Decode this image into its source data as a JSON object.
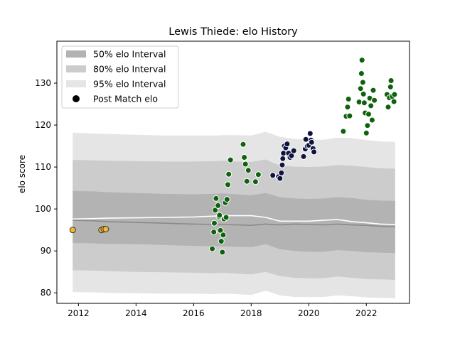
{
  "chart_data": {
    "type": "scatter",
    "title": "Lewis Thiede: elo History",
    "xlabel": "",
    "ylabel": "elo score",
    "xlim": [
      2011.25,
      2023.5
    ],
    "ylim": [
      77.5,
      140
    ],
    "x_ticks": [
      2012,
      2014,
      2016,
      2018,
      2020,
      2022
    ],
    "y_ticks": [
      80,
      90,
      100,
      110,
      120,
      130
    ],
    "grid": false,
    "legend_position": "top-left",
    "legend": [
      {
        "label": "50% elo Interval",
        "kind": "band",
        "color": "#b3b3b3"
      },
      {
        "label": "80% elo Interval",
        "kind": "band",
        "color": "#cccccc"
      },
      {
        "label": "95% elo Interval",
        "kind": "band",
        "color": "#e5e5e5"
      },
      {
        "label": "Post Match elo",
        "kind": "marker",
        "color": "#000000"
      }
    ],
    "bands": {
      "x": [
        2011.8,
        2012.5,
        2013.0,
        2014.0,
        2015.0,
        2016.0,
        2016.7,
        2017.0,
        2017.5,
        2018.0,
        2018.5,
        2019.0,
        2019.5,
        2020.0,
        2020.5,
        2021.0,
        2021.5,
        2022.0,
        2022.5,
        2023.0
      ],
      "p95_hi": [
        118.2,
        118.0,
        117.9,
        117.7,
        117.5,
        117.5,
        117.5,
        117.6,
        117.6,
        117.5,
        118.4,
        117.2,
        116.7,
        116.6,
        116.5,
        117.0,
        116.9,
        116.4,
        116.1,
        116.0
      ],
      "p80_hi": [
        111.7,
        111.6,
        111.5,
        111.4,
        111.3,
        111.3,
        111.4,
        111.5,
        111.3,
        111.2,
        111.8,
        110.3,
        110.1,
        110.0,
        110.1,
        110.5,
        110.3,
        110.0,
        109.7,
        109.6
      ],
      "p50_hi": [
        104.3,
        104.2,
        104.0,
        103.8,
        103.6,
        103.5,
        103.6,
        103.7,
        103.5,
        103.3,
        103.8,
        102.8,
        102.5,
        102.4,
        102.5,
        102.8,
        102.6,
        102.2,
        102.0,
        101.9
      ],
      "p50_lo": [
        91.9,
        91.8,
        91.7,
        91.6,
        91.4,
        91.2,
        91.1,
        91.1,
        91.0,
        90.9,
        91.6,
        90.4,
        90.0,
        89.8,
        89.8,
        90.2,
        90.0,
        89.7,
        89.6,
        89.5
      ],
      "p80_lo": [
        85.4,
        85.3,
        85.2,
        85.0,
        84.9,
        84.8,
        84.7,
        84.8,
        84.6,
        84.4,
        85.0,
        84.0,
        83.6,
        83.5,
        83.5,
        83.9,
        83.6,
        83.3,
        83.2,
        83.1
      ],
      "p95_lo": [
        80.2,
        80.1,
        80.0,
        79.9,
        79.8,
        79.8,
        79.7,
        79.8,
        79.7,
        79.5,
        80.5,
        79.4,
        79.0,
        79.0,
        79.0,
        79.4,
        79.2,
        78.9,
        78.8,
        78.7
      ],
      "mean": [
        97.3,
        97.2,
        97.0,
        96.8,
        96.6,
        96.4,
        96.3,
        96.3,
        96.2,
        96.1,
        96.4,
        96.2,
        96.4,
        96.3,
        96.2,
        96.4,
        96.2,
        96.1,
        95.9,
        95.8
      ],
      "median": [
        97.6,
        97.7,
        97.8,
        97.9,
        98.0,
        98.1,
        98.3,
        98.4,
        98.4,
        98.4,
        98.0,
        97.1,
        97.1,
        97.1,
        97.3,
        97.5,
        97.0,
        96.7,
        96.4,
        96.3
      ]
    },
    "series": [
      {
        "marker_color": "#f5b82e",
        "edge_color": "#333333",
        "points": [
          [
            2011.8,
            95.0
          ],
          [
            2012.8,
            95.0
          ],
          [
            2012.88,
            95.2
          ],
          [
            2012.95,
            95.2
          ]
        ]
      },
      {
        "marker_color": "#0e620e",
        "edge_color": "#ffffff",
        "points": [
          [
            2016.65,
            90.5
          ],
          [
            2016.7,
            94.5
          ],
          [
            2016.72,
            96.6
          ],
          [
            2016.75,
            99.7
          ],
          [
            2016.78,
            102.5
          ],
          [
            2016.85,
            100.8
          ],
          [
            2016.88,
            98.2
          ],
          [
            2016.9,
            98.5
          ],
          [
            2016.93,
            94.9
          ],
          [
            2016.96,
            92.3
          ],
          [
            2017.0,
            89.7
          ],
          [
            2017.03,
            93.8
          ],
          [
            2017.06,
            97.6
          ],
          [
            2017.1,
            101.5
          ],
          [
            2017.13,
            98.0
          ],
          [
            2017.16,
            102.3
          ],
          [
            2017.19,
            105.8
          ],
          [
            2017.22,
            108.3
          ],
          [
            2017.28,
            111.7
          ],
          [
            2017.72,
            115.4
          ],
          [
            2017.76,
            112.3
          ],
          [
            2017.8,
            110.7
          ],
          [
            2017.85,
            106.6
          ],
          [
            2017.9,
            109.2
          ],
          [
            2018.15,
            106.5
          ],
          [
            2018.25,
            108.2
          ]
        ]
      },
      {
        "marker_color": "#0f1340",
        "edge_color": "#ffffff",
        "points": [
          [
            2018.75,
            108.0
          ],
          [
            2018.95,
            107.7
          ],
          [
            2019.0,
            107.3
          ],
          [
            2019.05,
            108.6
          ],
          [
            2019.08,
            110.5
          ],
          [
            2019.1,
            112.0
          ],
          [
            2019.12,
            113.3
          ],
          [
            2019.15,
            115.0
          ],
          [
            2019.2,
            114.6
          ],
          [
            2019.25,
            115.5
          ],
          [
            2019.3,
            113.3
          ],
          [
            2019.35,
            112.3
          ],
          [
            2019.4,
            112.7
          ],
          [
            2019.48,
            113.9
          ],
          [
            2019.82,
            112.5
          ],
          [
            2019.88,
            114.3
          ],
          [
            2019.9,
            116.6
          ],
          [
            2019.95,
            115.0
          ],
          [
            2020.0,
            115.2
          ],
          [
            2020.05,
            118.0
          ],
          [
            2020.08,
            116.4
          ],
          [
            2020.1,
            115.9
          ],
          [
            2020.15,
            114.4
          ],
          [
            2020.18,
            113.6
          ]
        ]
      },
      {
        "marker_color": "#0e620e",
        "edge_color": "#ffffff",
        "points": [
          [
            2021.2,
            118.5
          ],
          [
            2021.3,
            122.1
          ],
          [
            2021.35,
            124.3
          ],
          [
            2021.38,
            126.2
          ],
          [
            2021.42,
            122.2
          ],
          [
            2021.75,
            125.5
          ],
          [
            2021.8,
            128.7
          ],
          [
            2021.83,
            132.3
          ],
          [
            2021.85,
            135.5
          ],
          [
            2021.88,
            130.2
          ],
          [
            2021.9,
            127.4
          ],
          [
            2021.93,
            125.3
          ],
          [
            2021.96,
            122.9
          ],
          [
            2022.0,
            118.1
          ],
          [
            2022.04,
            119.9
          ],
          [
            2022.08,
            122.6
          ],
          [
            2022.12,
            126.4
          ],
          [
            2022.16,
            124.6
          ],
          [
            2022.2,
            121.2
          ],
          [
            2022.24,
            128.3
          ],
          [
            2022.28,
            125.9
          ],
          [
            2022.72,
            127.3
          ],
          [
            2022.76,
            124.3
          ],
          [
            2022.8,
            126.5
          ],
          [
            2022.84,
            129.1
          ],
          [
            2022.86,
            130.6
          ],
          [
            2022.9,
            126.8
          ],
          [
            2022.96,
            125.6
          ],
          [
            2022.98,
            127.3
          ]
        ]
      }
    ]
  }
}
